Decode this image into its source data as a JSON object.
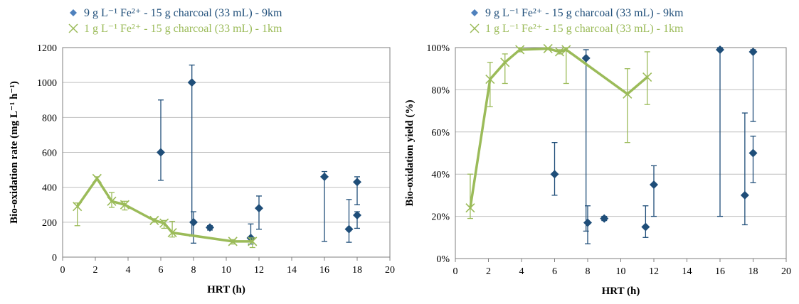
{
  "colors": {
    "series_9km": "#1F4E79",
    "series_1km": "#9BBB59",
    "grid": "#BFBFBF",
    "frame": "#7F7F7F",
    "legend_9km_marker": "#4F81BD"
  },
  "chart_data": [
    {
      "type": "scatter",
      "title": "",
      "xlabel": "HRT (h)",
      "ylabel": "Bio-oxidation rate (mg L⁻¹ h⁻¹)",
      "xlim": [
        0,
        20
      ],
      "ylim": [
        0,
        1200
      ],
      "xticks": [
        "0",
        "2",
        "4",
        "6",
        "8",
        "10",
        "12",
        "14",
        "16",
        "18",
        "20"
      ],
      "yticks": [
        "0",
        "200",
        "400",
        "600",
        "800",
        "1000",
        "1200"
      ],
      "grid": true,
      "legend_position": "top-left",
      "series": [
        {
          "name": "9 g L⁻¹ Fe²⁺ - 15 g charcoal (33 mL) - 9km",
          "marker": "diamond",
          "line": false,
          "points": [
            {
              "x": 6.0,
              "y": 600,
              "low": 440,
              "high": 900
            },
            {
              "x": 7.9,
              "y": 1000,
              "low": 120,
              "high": 1100
            },
            {
              "x": 8.0,
              "y": 200,
              "low": 80,
              "high": 260
            },
            {
              "x": 9.0,
              "y": 170,
              "low": 155,
              "high": 180
            },
            {
              "x": 11.5,
              "y": 110,
              "low": 75,
              "high": 190
            },
            {
              "x": 12.0,
              "y": 280,
              "low": 160,
              "high": 350
            },
            {
              "x": 16.0,
              "y": 460,
              "low": 90,
              "high": 490
            },
            {
              "x": 17.5,
              "y": 160,
              "low": 85,
              "high": 330
            },
            {
              "x": 18.0,
              "y": 430,
              "low": 300,
              "high": 460
            },
            {
              "x": 18.0,
              "y": 240,
              "low": 165,
              "high": 260
            }
          ]
        },
        {
          "name": "1 g L⁻¹ Fe²⁺ - 15 g charcoal (33 mL) - 1km",
          "marker": "x",
          "line": true,
          "points": [
            {
              "x": 0.9,
              "y": 290,
              "low": 180,
              "high": 310
            },
            {
              "x": 2.1,
              "y": 450,
              "low": 440,
              "high": 460
            },
            {
              "x": 3.0,
              "y": 320,
              "low": 285,
              "high": 370
            },
            {
              "x": 3.8,
              "y": 300,
              "low": 270,
              "high": 320
            },
            {
              "x": 5.6,
              "y": 210,
              "low": 200,
              "high": 220
            },
            {
              "x": 6.2,
              "y": 195,
              "low": 165,
              "high": 210
            },
            {
              "x": 6.7,
              "y": 140,
              "low": 115,
              "high": 205
            },
            {
              "x": 10.4,
              "y": 90,
              "low": 75,
              "high": 100
            },
            {
              "x": 11.6,
              "y": 90,
              "low": 55,
              "high": 110
            }
          ]
        }
      ]
    },
    {
      "type": "scatter",
      "title": "",
      "xlabel": "HRT (h)",
      "ylabel": "Bio-oxidation yield (%)",
      "xlim": [
        0,
        20
      ],
      "ylim": [
        0,
        100
      ],
      "xticks": [
        "0",
        "2",
        "4",
        "6",
        "8",
        "10",
        "12",
        "14",
        "16",
        "18",
        "20"
      ],
      "yticks": [
        "0%",
        "20%",
        "40%",
        "60%",
        "80%",
        "100%"
      ],
      "grid": true,
      "legend_position": "top-left",
      "series": [
        {
          "name": "9 g L⁻¹ Fe²⁺ - 15 g charcoal (33 mL) - 9km",
          "marker": "diamond",
          "line": false,
          "points": [
            {
              "x": 6.0,
              "y": 40,
              "low": 30,
              "high": 55
            },
            {
              "x": 7.9,
              "y": 95,
              "low": 13,
              "high": 99
            },
            {
              "x": 8.0,
              "y": 17,
              "low": 7,
              "high": 25
            },
            {
              "x": 9.0,
              "y": 19,
              "low": 18,
              "high": 20
            },
            {
              "x": 11.5,
              "y": 15,
              "low": 10,
              "high": 25
            },
            {
              "x": 12.0,
              "y": 35,
              "low": 20,
              "high": 44
            },
            {
              "x": 16.0,
              "y": 99,
              "low": 20,
              "high": 100
            },
            {
              "x": 17.5,
              "y": 30,
              "low": 16,
              "high": 69
            },
            {
              "x": 18.0,
              "y": 98,
              "low": 65,
              "high": 99
            },
            {
              "x": 18.0,
              "y": 50,
              "low": 36,
              "high": 58
            }
          ]
        },
        {
          "name": "1 g L⁻¹ Fe²⁺ - 15 g charcoal (33 mL) - 1km",
          "marker": "x",
          "line": true,
          "points": [
            {
              "x": 0.9,
              "y": 24,
              "low": 19,
              "high": 40
            },
            {
              "x": 2.1,
              "y": 85,
              "low": 72,
              "high": 93
            },
            {
              "x": 3.0,
              "y": 93,
              "low": 83,
              "high": 97
            },
            {
              "x": 3.9,
              "y": 99,
              "low": 98,
              "high": 100
            },
            {
              "x": 5.6,
              "y": 99.5,
              "low": 99,
              "high": 100
            },
            {
              "x": 6.3,
              "y": 98,
              "low": 97,
              "high": 99
            },
            {
              "x": 6.7,
              "y": 99,
              "low": 83,
              "high": 100
            },
            {
              "x": 10.4,
              "y": 78,
              "low": 55,
              "high": 90
            },
            {
              "x": 11.6,
              "y": 86,
              "low": 73,
              "high": 98
            }
          ]
        }
      ]
    }
  ]
}
